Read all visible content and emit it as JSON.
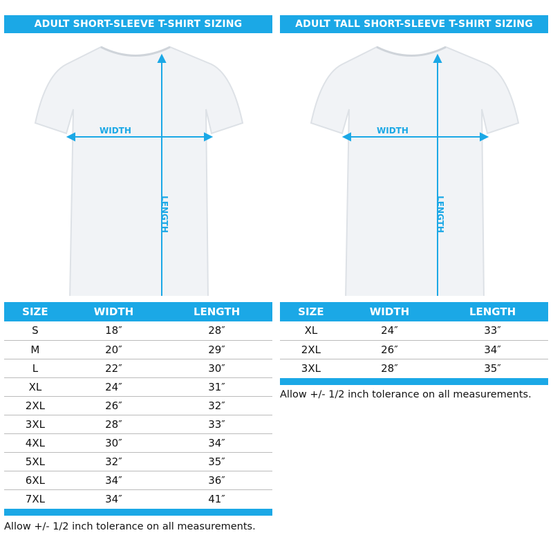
{
  "accent": "#1ba8e6",
  "left": {
    "title": "ADULT SHORT-SLEEVE T-SHIRT SIZING",
    "width_label": "WIDTH",
    "length_label": "LENGTH",
    "headers": [
      "SIZE",
      "WIDTH",
      "LENGTH"
    ],
    "rows": [
      [
        "S",
        "18″",
        "28″"
      ],
      [
        "M",
        "20″",
        "29″"
      ],
      [
        "L",
        "22″",
        "30″"
      ],
      [
        "XL",
        "24″",
        "31″"
      ],
      [
        "2XL",
        "26″",
        "32″"
      ],
      [
        "3XL",
        "28″",
        "33″"
      ],
      [
        "4XL",
        "30″",
        "34″"
      ],
      [
        "5XL",
        "32″",
        "35″"
      ],
      [
        "6XL",
        "34″",
        "36″"
      ],
      [
        "7XL",
        "34″",
        "41″"
      ]
    ],
    "note": "Allow +/- 1/2 inch tolerance on all measurements."
  },
  "right": {
    "title": "ADULT TALL SHORT-SLEEVE T-SHIRT SIZING",
    "width_label": "WIDTH",
    "length_label": "LENGTH",
    "headers": [
      "SIZE",
      "WIDTH",
      "LENGTH"
    ],
    "rows": [
      [
        "XL",
        "24″",
        "33″"
      ],
      [
        "2XL",
        "26″",
        "34″"
      ],
      [
        "3XL",
        "28″",
        "35″"
      ]
    ],
    "note": "Allow +/- 1/2 inch tolerance on all measurements."
  }
}
